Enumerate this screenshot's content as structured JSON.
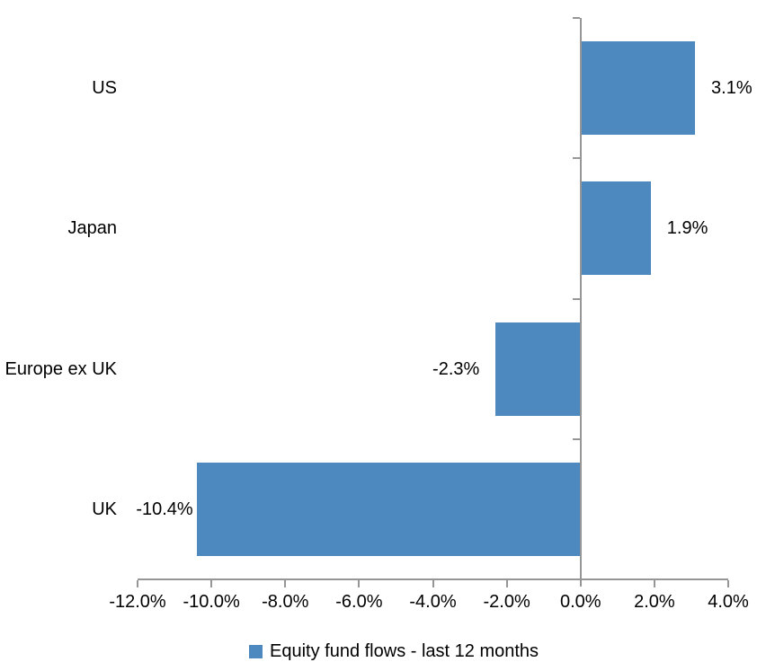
{
  "chart_data": {
    "type": "bar",
    "orientation": "horizontal",
    "title": "",
    "categories": [
      "US",
      "Japan",
      "Europe ex UK",
      "UK"
    ],
    "values": [
      3.1,
      1.9,
      -2.3,
      -10.4
    ],
    "value_labels": [
      "3.1%",
      "1.9%",
      "-2.3%",
      "-10.4%"
    ],
    "xlim": [
      -12,
      4
    ],
    "x_ticks": [
      {
        "value": -12,
        "label": "-12.0%"
      },
      {
        "value": -10,
        "label": "-10.0%"
      },
      {
        "value": -8,
        "label": "-8.0%"
      },
      {
        "value": -6,
        "label": "-6.0%"
      },
      {
        "value": -4,
        "label": "-4.0%"
      },
      {
        "value": -2,
        "label": "-2.0%"
      },
      {
        "value": 0,
        "label": "0.0%"
      },
      {
        "value": 2,
        "label": "2.0%"
      },
      {
        "value": 4,
        "label": "4.0%"
      }
    ],
    "grid": false,
    "legend": {
      "position": "bottom",
      "label": "Equity fund flows - last 12 months"
    },
    "colors": {
      "bar": "#4D89BE",
      "axis": "#969696",
      "text": "#000000",
      "background": "#FFFFFF"
    }
  }
}
